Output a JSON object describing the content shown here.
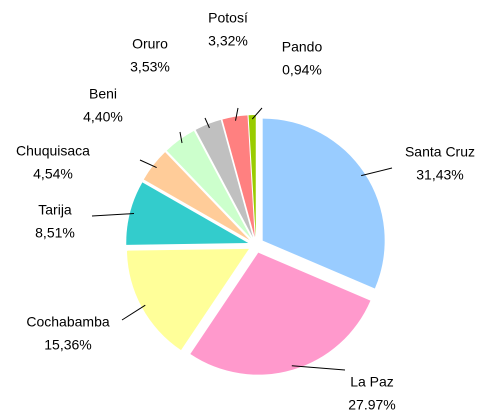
{
  "chart_data": {
    "type": "pie",
    "categories": [
      "Santa Cruz",
      "La Paz",
      "Cochabamba",
      "Tarija",
      "Chuquisaca",
      "Beni",
      "Oruro",
      "Potosí",
      "Pando"
    ],
    "values": [
      31.43,
      27.97,
      15.36,
      8.51,
      4.54,
      4.4,
      3.53,
      3.32,
      0.94
    ],
    "value_labels": [
      "31,43%",
      "27.97%",
      "15,36%",
      "8,51%",
      "4,54%",
      "4,40%",
      "3,53%",
      "3,32%",
      "0,94%"
    ],
    "colors": [
      "#99ccff",
      "#ff99cc",
      "#ffff99",
      "#33cccc",
      "#ffcc99",
      "#ccffcc",
      "#c0c0c0",
      "#ff8080",
      "#99cc00"
    ]
  }
}
